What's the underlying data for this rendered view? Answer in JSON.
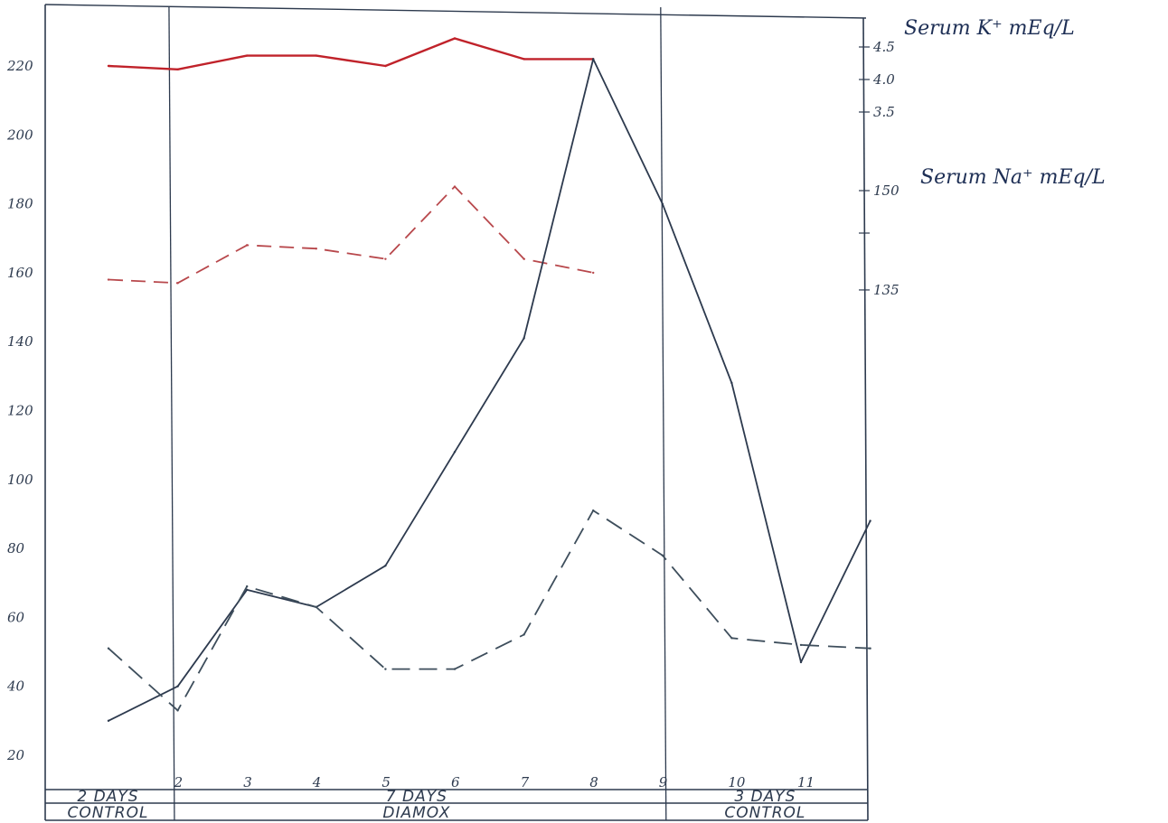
{
  "chart_data": {
    "type": "line",
    "left_axis": {
      "ticks": [
        {
          "value": 20,
          "label": "20"
        },
        {
          "value": 40,
          "label": "40"
        },
        {
          "value": 60,
          "label": "60"
        },
        {
          "value": 80,
          "label": "80"
        },
        {
          "value": 100,
          "label": "100"
        },
        {
          "value": 120,
          "label": "120"
        },
        {
          "value": 140,
          "label": "140"
        },
        {
          "value": 160,
          "label": "160"
        },
        {
          "value": 180,
          "label": "180"
        },
        {
          "value": 200,
          "label": "200"
        },
        {
          "value": 220,
          "label": "220"
        }
      ],
      "ylim": [
        10,
        236
      ]
    },
    "right_axis": {
      "potassium_title": "Serum K⁺ mEq/L",
      "sodium_title": "Serum Na⁺ mEq/L",
      "potassium_ticks": [
        {
          "value": 4.5,
          "label": "4.5"
        },
        {
          "value": 4.0,
          "label": "4.0"
        },
        {
          "value": 3.5,
          "label": "3.5"
        }
      ],
      "sodium_ticks": [
        {
          "value": 150,
          "label": "150"
        },
        {
          "value": 135,
          "label": "135"
        }
      ]
    },
    "x_ticks": [
      {
        "day": 2,
        "label": "2"
      },
      {
        "day": 3,
        "label": "3"
      },
      {
        "day": 4,
        "label": "4"
      },
      {
        "day": 5,
        "label": "5"
      },
      {
        "day": 6,
        "label": "6"
      },
      {
        "day": 7,
        "label": "7"
      },
      {
        "day": 8,
        "label": "8"
      },
      {
        "day": 9,
        "label": "9"
      },
      {
        "day": 10,
        "label": "10"
      },
      {
        "day": 11,
        "label": "11"
      }
    ],
    "periods": [
      {
        "days_label": "2 DAYS",
        "phase_label": "CONTROL"
      },
      {
        "days_label": "7 DAYS",
        "phase_label": "DIAMOX"
      },
      {
        "days_label": "3 DAYS",
        "phase_label": "CONTROL"
      }
    ],
    "phase_boundaries": [
      1.9,
      9.0
    ],
    "series": [
      {
        "style": "solid",
        "color": "#c0222a",
        "x": [
          1,
          2,
          3,
          4,
          5,
          6,
          7,
          8
        ],
        "y": [
          220,
          219,
          223,
          223,
          220,
          228,
          222,
          222
        ]
      },
      {
        "style": "dashed",
        "color": "#b8484c",
        "x": [
          1,
          2,
          3,
          4,
          5,
          6,
          7,
          8
        ],
        "y": [
          158,
          157,
          168,
          167,
          164,
          185,
          164,
          160
        ]
      },
      {
        "style": "solid",
        "color": "#2d3a4e",
        "x": [
          1,
          2,
          3,
          4,
          5,
          6,
          7,
          8,
          9,
          10,
          11,
          12
        ],
        "y": [
          30,
          40,
          68,
          63,
          75,
          108,
          141,
          222,
          180,
          128,
          47,
          88
        ]
      },
      {
        "style": "dashed",
        "color": "#3e4e5c",
        "x": [
          1,
          2,
          3,
          4,
          5,
          6,
          7,
          8,
          9,
          10,
          11,
          12
        ],
        "y": [
          51,
          33,
          69,
          63,
          45,
          45,
          55,
          91,
          78,
          54,
          52,
          51
        ]
      }
    ]
  }
}
